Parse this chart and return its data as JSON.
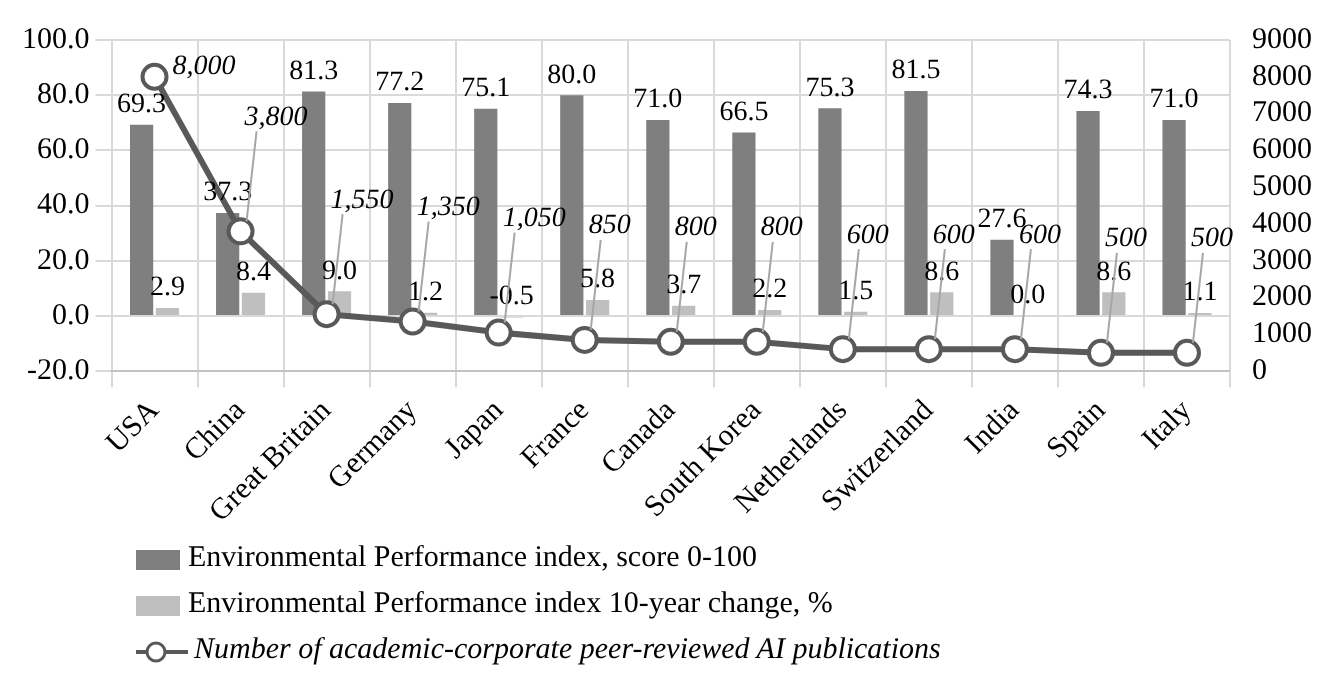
{
  "chart_data": {
    "type": "bar",
    "categories": [
      "USA",
      "China",
      "Great Britain",
      "Germany",
      "Japan",
      "France",
      "Canada",
      "South Korea",
      "Netherlands",
      "Switzerland",
      "India",
      "Spain",
      "Italy"
    ],
    "series": [
      {
        "name": "Environmental Performance index, score 0-100",
        "color": "#7f7f7f",
        "values": [
          69.3,
          37.3,
          81.3,
          77.2,
          75.1,
          80.0,
          71.0,
          66.5,
          75.3,
          81.5,
          27.6,
          74.3,
          71.0
        ],
        "value_labels": [
          "69.3",
          "37.3",
          "81.3",
          "77.2",
          "75.1",
          "80.0",
          "71.0",
          "66.5",
          "75.3",
          "81.5",
          "27.6",
          "74.3",
          "71.0"
        ]
      },
      {
        "name": "Environmental Performance index 10-year change, %",
        "color": "#bfbfbf",
        "values": [
          2.9,
          8.4,
          9.0,
          1.2,
          -0.5,
          5.8,
          3.7,
          2.2,
          1.5,
          8.6,
          0.0,
          8.6,
          1.1
        ],
        "value_labels": [
          "2.9",
          "8.4",
          "9.0",
          "1.2",
          "-0.5",
          "5.8",
          "3.7",
          "2.2",
          "1.5",
          "8.6",
          "0.0",
          "8.6",
          "1.1"
        ]
      },
      {
        "name": "Number of academic-corporate peer-reviewed AI publications",
        "color": "#595959",
        "type": "line",
        "axis": "y2",
        "values": [
          8000,
          3800,
          1550,
          1350,
          1050,
          850,
          800,
          800,
          600,
          600,
          600,
          500,
          500
        ],
        "value_labels": [
          "8,000",
          "3,800",
          "1,550",
          "1,350",
          "1,050",
          "850",
          "800",
          "800",
          "600",
          "600",
          "600",
          "500",
          "500"
        ]
      }
    ],
    "ylim": [
      -20,
      100
    ],
    "yticks": [
      {
        "value": -20,
        "label": "-20.0"
      },
      {
        "value": 0,
        "label": "0.0"
      },
      {
        "value": 20,
        "label": "20.0"
      },
      {
        "value": 40,
        "label": "40.0"
      },
      {
        "value": 60,
        "label": "60.0"
      },
      {
        "value": 80,
        "label": "80.0"
      },
      {
        "value": 100,
        "label": "100.0"
      }
    ],
    "y2lim": [
      0,
      9000
    ],
    "y2ticks": [
      0,
      1000,
      2000,
      3000,
      4000,
      5000,
      6000,
      7000,
      8000,
      9000
    ],
    "grid": true,
    "legend": "bottom",
    "marker": "circle",
    "line_style": "solid"
  }
}
